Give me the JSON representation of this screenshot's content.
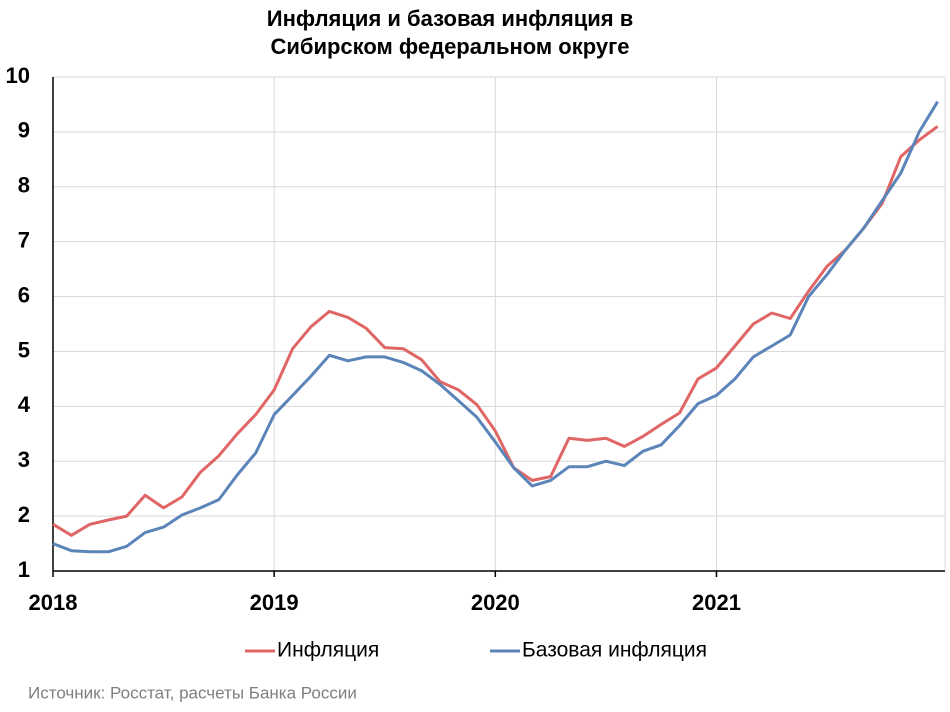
{
  "chart_data": {
    "type": "line",
    "title": "Инфляция и базовая инфляция в Сибирском федеральном округе",
    "categories": [
      "2018",
      null,
      null,
      null,
      null,
      null,
      null,
      null,
      null,
      null,
      null,
      null,
      "2019",
      null,
      null,
      null,
      null,
      null,
      null,
      null,
      null,
      null,
      null,
      null,
      "2020",
      null,
      null,
      null,
      null,
      null,
      null,
      null,
      null,
      null,
      null,
      null,
      "2021",
      null,
      null,
      null,
      null,
      null,
      null,
      null,
      null,
      null,
      null,
      null,
      null
    ],
    "series": [
      {
        "name": "Инфляция",
        "color": "#e06666",
        "values": [
          1.85,
          1.65,
          1.85,
          1.93,
          2.0,
          2.38,
          2.15,
          2.35,
          2.8,
          3.1,
          3.5,
          3.85,
          4.3,
          5.05,
          5.45,
          5.73,
          5.62,
          5.42,
          5.07,
          5.05,
          4.85,
          4.45,
          4.3,
          4.03,
          3.55,
          2.88,
          2.65,
          2.72,
          3.42,
          3.38,
          3.42,
          3.27,
          3.45,
          3.67,
          3.88,
          4.5,
          4.7,
          5.1,
          5.5,
          5.7,
          5.6,
          6.1,
          6.55,
          6.85,
          7.25,
          7.7,
          8.55,
          8.85,
          9.1
        ]
      },
      {
        "name": "Базовая инфляция",
        "color": "#5b84b9",
        "values": [
          1.5,
          1.37,
          1.35,
          1.35,
          1.45,
          1.7,
          1.8,
          2.02,
          2.15,
          2.3,
          2.75,
          3.15,
          3.85,
          4.2,
          4.55,
          4.93,
          4.83,
          4.9,
          4.9,
          4.8,
          4.65,
          4.4,
          4.1,
          3.8,
          3.35,
          2.88,
          2.55,
          2.65,
          2.9,
          2.9,
          3.0,
          2.92,
          3.18,
          3.3,
          3.65,
          4.05,
          4.2,
          4.5,
          4.9,
          5.1,
          5.3,
          6.0,
          6.4,
          6.85,
          7.25,
          7.75,
          8.25,
          9.0,
          9.55
        ]
      }
    ],
    "ylim": [
      1,
      10
    ],
    "yticks": [
      1,
      2,
      3,
      4,
      5,
      6,
      7,
      8,
      9,
      10
    ],
    "grid": true,
    "legend": "bottom",
    "source": "Источник: Росстат, расчеты Банка России"
  }
}
